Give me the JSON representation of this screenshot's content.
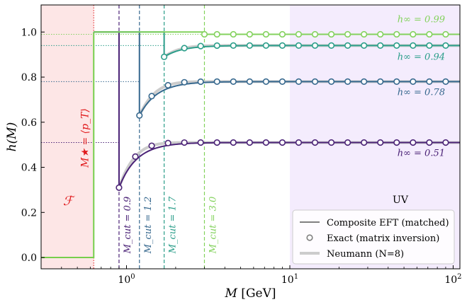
{
  "chart_data": {
    "type": "line",
    "title": "",
    "xlabel": "M [GeV]",
    "ylabel": "h(M)",
    "xscale": "log",
    "xlim": [
      0.3,
      110
    ],
    "ylim": [
      -0.05,
      1.12
    ],
    "xticks": [
      {
        "value": 1,
        "label": "10^0"
      },
      {
        "value": 10,
        "label": "10^1"
      },
      {
        "value": 100,
        "label": "10^2"
      }
    ],
    "yticks": [
      0.0,
      0.2,
      0.4,
      0.6,
      0.8,
      1.0
    ],
    "ytick_labels": [
      "0.0",
      "0.2",
      "0.4",
      "0.6",
      "0.8",
      "1.0"
    ],
    "regions": {
      "F": {
        "label": "ℱ",
        "x": [
          0.3,
          0.63
        ],
        "color": "#fde6e6"
      },
      "UV": {
        "label": "UV",
        "x": [
          10,
          110
        ],
        "color": "#f4ecfd"
      }
    },
    "m_star": {
      "value": 0.63,
      "label": "M★ = ⟨p_T⟩",
      "color": "#e0191b"
    },
    "step_value": 1.0,
    "step_color": "#76cf4c",
    "series": [
      {
        "name": "h_inf = 0.51",
        "h_inf": 0.51,
        "m_cut": 0.9,
        "h_at_cut": 0.31,
        "color": "#4b2377",
        "cut_label": "M_cut = 0.9",
        "h_label": "h∞ = 0.51"
      },
      {
        "name": "h_inf = 0.78",
        "h_inf": 0.78,
        "m_cut": 1.2,
        "h_at_cut": 0.63,
        "color": "#36688e",
        "cut_label": "M_cut = 1.2",
        "h_label": "h∞ = 0.78"
      },
      {
        "name": "h_inf = 0.94",
        "h_inf": 0.94,
        "m_cut": 1.7,
        "h_at_cut": 0.89,
        "color": "#2b9e8a",
        "cut_label": "M_cut = 1.7",
        "h_label": "h∞ = 0.94"
      },
      {
        "name": "h_inf = 0.99",
        "h_inf": 0.99,
        "m_cut": 3.0,
        "h_at_cut": 0.99,
        "color": "#83d25d",
        "cut_label": "M_cut = 3.0",
        "h_label": "h∞ = 0.99"
      }
    ],
    "legend": {
      "position": "lower-right",
      "entries": [
        {
          "label": "Composite EFT (matched)",
          "style": "line",
          "color": "#808080"
        },
        {
          "label": "Exact (matrix inversion)",
          "style": "open-circle",
          "color": "#808080"
        },
        {
          "label": "Neumann (N=8)",
          "style": "thick-line",
          "color": "#cccccc"
        }
      ]
    }
  }
}
